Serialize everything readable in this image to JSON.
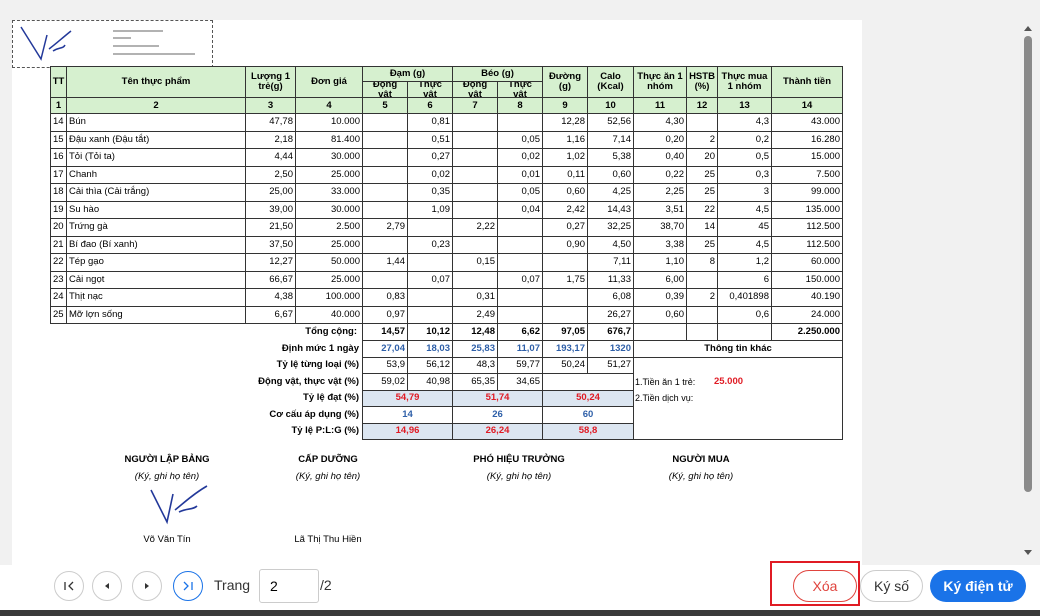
{
  "stamp_signer": null,
  "table": {
    "header": [
      "TT",
      "Tên thực phẩm",
      "Lượng 1 trẻ(g)",
      "Đơn giá",
      "Đạm (g)",
      "Béo (g)",
      "Đường (g)",
      "Calo (Kcal)",
      "Thực ăn 1 nhóm",
      "HSTB (%)",
      "Thực mua 1 nhóm",
      "Thành tiền"
    ],
    "subheader": [
      "Động vật",
      "Thực vật",
      "Động vật",
      "Thực vật"
    ],
    "column_numbers": [
      1,
      2,
      3,
      4,
      5,
      6,
      7,
      8,
      9,
      10,
      11,
      12,
      13,
      14
    ],
    "rows": [
      [
        14,
        "Bún",
        "47,78",
        "10.000",
        null,
        "0,81",
        null,
        null,
        "12,28",
        "52,56",
        "4,30",
        null,
        "4,3",
        "43.000"
      ],
      [
        15,
        "Đậu xanh (Đậu tắt)",
        "2,18",
        "81.400",
        null,
        "0,51",
        null,
        "0,05",
        "1,16",
        "7,14",
        "0,20",
        2,
        "0,2",
        "16.280"
      ],
      [
        16,
        "Tỏi (Tỏi ta)",
        "4,44",
        "30.000",
        null,
        "0,27",
        null,
        "0,02",
        "1,02",
        "5,38",
        "0,40",
        20,
        "0,5",
        "15.000"
      ],
      [
        17,
        "Chanh",
        "2,50",
        "25.000",
        null,
        "0,02",
        null,
        "0,01",
        "0,11",
        "0,60",
        "0,22",
        25,
        "0,3",
        "7.500"
      ],
      [
        18,
        "Cải thìa (Cải trắng)",
        "25,00",
        "33.000",
        null,
        "0,35",
        null,
        "0,05",
        "0,60",
        "4,25",
        "2,25",
        25,
        3,
        "99.000"
      ],
      [
        19,
        "Su hào",
        "39,00",
        "30.000",
        null,
        "1,09",
        null,
        "0,04",
        "2,42",
        "14,43",
        "3,51",
        22,
        "4,5",
        "135.000"
      ],
      [
        20,
        "Trứng gà",
        "21,50",
        "2.500",
        "2,79",
        null,
        "2,22",
        null,
        "0,27",
        "32,25",
        "38,70",
        14,
        45,
        "112.500"
      ],
      [
        21,
        "Bí đao (Bí xanh)",
        "37,50",
        "25.000",
        null,
        "0,23",
        null,
        null,
        "0,90",
        "4,50",
        "3,38",
        25,
        "4,5",
        "112.500"
      ],
      [
        22,
        "Tép gạo",
        "12,27",
        "50.000",
        "1,44",
        null,
        "0,15",
        null,
        null,
        "7,11",
        "1,10",
        8,
        "1,2",
        "60.000"
      ],
      [
        23,
        "Cải ngọt",
        "66,67",
        "25.000",
        null,
        "0,07",
        null,
        "0,07",
        "1,75",
        "11,33",
        "6,00",
        null,
        6,
        "150.000"
      ],
      [
        24,
        "Thịt nạc",
        "4,38",
        "100.000",
        "0,83",
        null,
        "0,31",
        null,
        null,
        "6,08",
        "0,39",
        2,
        "0,401898",
        "40.190"
      ],
      [
        25,
        "Mỡ lợn sống",
        "6,67",
        "40.000",
        "0,97",
        null,
        "2,49",
        null,
        null,
        "26,27",
        "0,60",
        null,
        "0,6",
        "24.000"
      ]
    ],
    "total": {
      "label": "Tổng cộng:",
      "values": [
        "14,57",
        "10,12",
        "12,48",
        "6,62",
        "97,05",
        "676,7"
      ],
      "amount": "2.250.000"
    },
    "summary": [
      {
        "label": "Định mức 1 ngày",
        "values": [
          "27,04",
          "18,03",
          "25,83",
          "11,07",
          "193,17",
          1320
        ]
      },
      {
        "label": "Tỷ lệ từng loại (%)",
        "values": [
          "53,9",
          "56,12",
          "48,3",
          "59,77",
          "50,24",
          "51,27"
        ]
      },
      {
        "label": "Động vật, thực vật (%)",
        "values": [
          "59,02",
          "40,98",
          "65,35",
          "34,65",
          null,
          null
        ]
      },
      {
        "label": "Tỷ lệ đạt (%)",
        "values": [
          "54,79",
          "51,74",
          "50,24"
        ]
      },
      {
        "label": "Cơ cấu áp dụng (%)",
        "values": [
          14,
          26,
          60
        ]
      },
      {
        "label": "Tỷ lệ P:L:G (%)",
        "values": [
          "14,96",
          "26,24",
          "58,8"
        ]
      }
    ],
    "other_info": {
      "title": "Thông tin khác",
      "meal_cost_label": "1.Tiền ăn 1 trẻ:",
      "meal_cost": "25.000",
      "service_label": "2.Tiền dịch vụ:"
    }
  },
  "signatures": [
    {
      "role": "NGƯỜI LẬP BẢNG",
      "note": "(Ký, ghi họ tên)",
      "name": "Võ Văn Tín"
    },
    {
      "role": "CẤP DƯỠNG",
      "note": "(Ký, ghi họ tên)",
      "name": "Lã Thị Thu Hiền"
    },
    {
      "role": "PHÓ HIỆU TRƯỞNG",
      "note": "(Ký, ghi họ tên)"
    },
    {
      "role": "NGƯỜI MUA",
      "note": "(Ký, ghi họ tên)"
    }
  ],
  "toolbar": {
    "page_label": "Trang",
    "page": "2",
    "page_total": "/2",
    "delete": "Xóa",
    "sign": "Ký số",
    "e_sign": "Ký điện tử"
  }
}
